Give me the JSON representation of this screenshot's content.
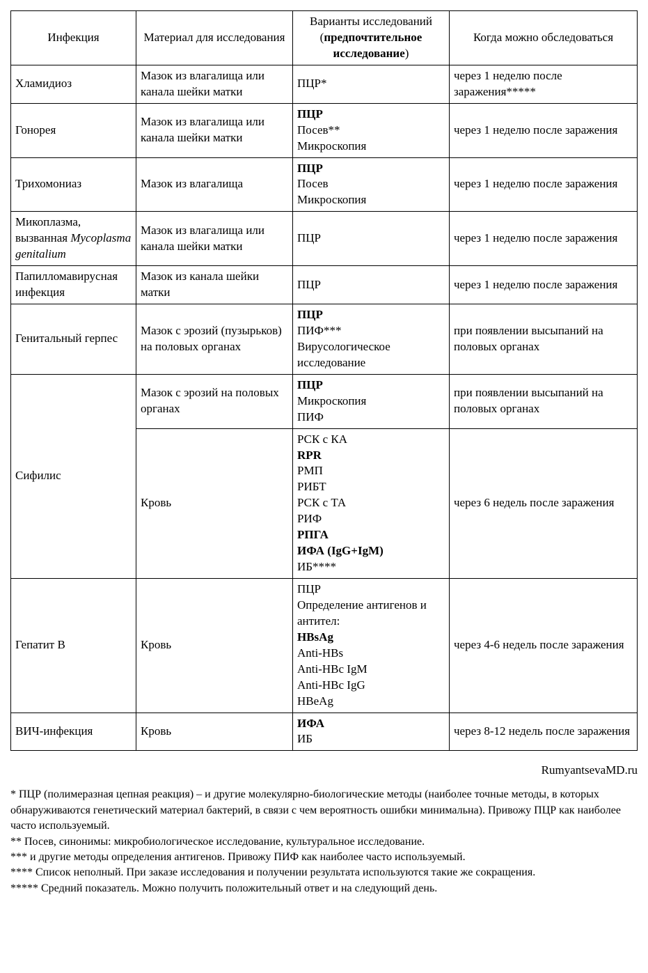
{
  "headers": {
    "col1": "Инфекция",
    "col2": "Материал для исследования",
    "col3_line1": "Варианты исследований",
    "col3_line2": "(",
    "col3_bold": "предпочтительное исследование",
    "col3_line3": ")",
    "col4": "Когда можно обследоваться"
  },
  "rows": {
    "r1": {
      "infection": "Хламидиоз",
      "material": "Мазок из влагалища или канала шейки матки",
      "tests": [
        {
          "t": "ПЦР*",
          "b": false
        }
      ],
      "when": "через 1 неделю после заражения*****"
    },
    "r2": {
      "infection": "Гонорея",
      "material": "Мазок из влагалища или канала шейки матки",
      "tests": [
        {
          "t": "ПЦР",
          "b": true
        },
        {
          "t": "Посев**",
          "b": false
        },
        {
          "t": "Микроскопия",
          "b": false
        }
      ],
      "when": "через 1 неделю после заражения"
    },
    "r3": {
      "infection": "Трихомониаз",
      "material": "Мазок из влагалища",
      "tests": [
        {
          "t": "ПЦР",
          "b": true
        },
        {
          "t": "Посев",
          "b": false
        },
        {
          "t": "Микроскопия",
          "b": false
        }
      ],
      "when": "через 1 неделю после заражения"
    },
    "r4": {
      "infection_p1": "Микоплазма, вызванная",
      "infection_italic": "Mycoplasma genitalium",
      "material": "Мазок из влагалища или канала шейки матки",
      "tests": [
        {
          "t": "ПЦР",
          "b": false
        }
      ],
      "when": "через 1 неделю после заражения"
    },
    "r5": {
      "infection": "Папилломавирусная инфекция",
      "material": "Мазок из канала шейки матки",
      "tests": [
        {
          "t": "ПЦР",
          "b": false
        }
      ],
      "when": "через 1 неделю после заражения"
    },
    "r6": {
      "infection": "Генитальный герпес",
      "material": "Мазок с эрозий (пузырьков) на половых органах",
      "tests": [
        {
          "t": "ПЦР",
          "b": true
        },
        {
          "t": "ПИФ***",
          "b": false
        },
        {
          "t": "Вирусологическое исследование",
          "b": false
        }
      ],
      "when": "при появлении высыпаний на половых органах"
    },
    "r7a": {
      "infection": "Сифилис",
      "material": "Мазок с эрозий на половых органах",
      "tests": [
        {
          "t": "ПЦР",
          "b": true
        },
        {
          "t": "Микроскопия",
          "b": false
        },
        {
          "t": "ПИФ",
          "b": false
        }
      ],
      "when": "при появлении высыпаний на половых органах"
    },
    "r7b": {
      "material": "Кровь",
      "tests": [
        {
          "t": "РСК с КА",
          "b": false
        },
        {
          "t": "RPR",
          "b": true
        },
        {
          "t": "РМП",
          "b": false
        },
        {
          "t": "РИБТ",
          "b": false
        },
        {
          "t": "РСК с ТА",
          "b": false
        },
        {
          "t": "РИФ",
          "b": false
        },
        {
          "t": "РПГА",
          "b": true
        },
        {
          "t": "ИФА (IgG+IgM)",
          "b": true
        },
        {
          "t": "ИБ****",
          "b": false
        }
      ],
      "when": "через 6 недель после заражения"
    },
    "r8": {
      "infection": "Гепатит В",
      "material": "Кровь",
      "tests": [
        {
          "t": "ПЦР",
          "b": false
        },
        {
          "t": "Определение антигенов и антител:",
          "b": false
        },
        {
          "t": "HBsAg",
          "b": true
        },
        {
          "t": "Anti-HBs",
          "b": false
        },
        {
          "t": "Anti-HBc IgM",
          "b": false
        },
        {
          "t": "Anti-HBc IgG",
          "b": false
        },
        {
          "t": "HBeAg",
          "b": false
        }
      ],
      "when": "через 4-6 недель после заражения"
    },
    "r9": {
      "infection": "ВИЧ-инфекция",
      "material": "Кровь",
      "tests": [
        {
          "t": "ИФА",
          "b": true
        },
        {
          "t": "ИБ",
          "b": false
        }
      ],
      "when": "через 8-12 недель после заражения"
    }
  },
  "attribution": "RumyantsevaMD.ru",
  "footnotes": [
    "* ПЦР (полимеразная цепная реакция) – и другие молекулярно-биологические методы (наиболее точные методы, в которых обнаруживаются генетический материал бактерий, в связи с чем вероятность ошибки минимальна). Привожу ПЦР как наиболее часто используемый.",
    "** Посев, синонимы: микробиологическое исследование, культуральное исследование.",
    "*** и другие методы определения антигенов. Привожу ПИФ как наиболее часто используемый.",
    "**** Список неполный. При заказе исследования и получении результата используются такие же сокращения.",
    "***** Средний показатель. Можно получить положительный ответ и на следующий день."
  ],
  "style": {
    "fontFamily": "Times New Roman",
    "baseFontSize": 17,
    "footnoteFontSize": 16,
    "borderColor": "#000000",
    "textColor": "#000000",
    "backgroundColor": "#ffffff",
    "colWidths": [
      "20%",
      "25%",
      "25%",
      "30%"
    ]
  }
}
